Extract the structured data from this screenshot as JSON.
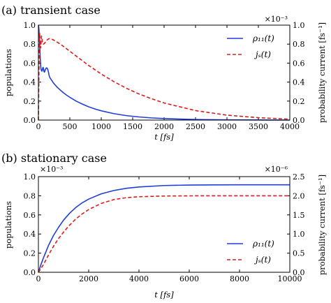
{
  "chart_data": [
    {
      "type": "line",
      "title": "(a) transient case",
      "xlabel": "t [fs]",
      "ylabel": "populations",
      "y2label": "probability current [fs⁻¹]",
      "xlim": [
        0,
        4000
      ],
      "ylim": [
        0,
        1.0
      ],
      "y2lim": [
        0,
        1.0
      ],
      "y2_scale_label": "×10⁻³",
      "xticks": [
        "0",
        "500",
        "1000",
        "1500",
        "2000",
        "2500",
        "3000",
        "3500",
        "4000"
      ],
      "yticks": [
        "0.0",
        "0.2",
        "0.4",
        "0.6",
        "0.8",
        "1.0"
      ],
      "y2ticks": [
        "0.0",
        "0.2",
        "0.4",
        "0.6",
        "0.8",
        "1.0"
      ],
      "legend_position": "top-right",
      "series": [
        {
          "name": "ρ₁₁(t)",
          "axis": "left",
          "color": "#1f3fd8",
          "style": "solid",
          "x": [
            0,
            5,
            10,
            15,
            20,
            25,
            30,
            35,
            40,
            45,
            50,
            55,
            60,
            65,
            70,
            75,
            80,
            85,
            90,
            95,
            100,
            110,
            120,
            130,
            140,
            150,
            160,
            170,
            180,
            190,
            200,
            220,
            240,
            260,
            280,
            300,
            350,
            400,
            450,
            500,
            600,
            700,
            800,
            900,
            1000,
            1200,
            1400,
            1600,
            1800,
            2000,
            2500,
            3000,
            3500,
            4000
          ],
          "y": [
            1.0,
            0.98,
            0.94,
            0.88,
            0.8,
            0.72,
            0.64,
            0.58,
            0.545,
            0.53,
            0.52,
            0.515,
            0.52,
            0.535,
            0.55,
            0.555,
            0.545,
            0.525,
            0.51,
            0.505,
            0.51,
            0.53,
            0.545,
            0.55,
            0.545,
            0.53,
            0.505,
            0.47,
            0.45,
            0.44,
            0.43,
            0.41,
            0.39,
            0.375,
            0.36,
            0.345,
            0.315,
            0.287,
            0.262,
            0.24,
            0.2,
            0.168,
            0.14,
            0.117,
            0.098,
            0.068,
            0.047,
            0.033,
            0.023,
            0.016,
            0.006,
            0.002,
            0.001,
            0.0
          ]
        },
        {
          "name": "jₛ(t)",
          "axis": "right",
          "color": "#e01a1a",
          "style": "dashed",
          "x": [
            0,
            5,
            10,
            15,
            20,
            25,
            30,
            35,
            40,
            45,
            50,
            55,
            60,
            65,
            70,
            80,
            90,
            100,
            110,
            120,
            140,
            160,
            180,
            200,
            220,
            250,
            300,
            350,
            400,
            450,
            500,
            600,
            700,
            800,
            900,
            1000,
            1200,
            1400,
            1600,
            1800,
            2000,
            2500,
            3000,
            3500,
            4000
          ],
          "y": [
            0.0,
            0.3,
            0.6,
            0.82,
            0.92,
            0.88,
            0.8,
            0.76,
            0.79,
            0.85,
            0.885,
            0.875,
            0.84,
            0.81,
            0.8,
            0.8,
            0.805,
            0.81,
            0.82,
            0.83,
            0.845,
            0.855,
            0.858,
            0.855,
            0.85,
            0.84,
            0.82,
            0.8,
            0.775,
            0.75,
            0.725,
            0.675,
            0.625,
            0.575,
            0.53,
            0.485,
            0.405,
            0.335,
            0.275,
            0.225,
            0.18,
            0.1,
            0.052,
            0.025,
            0.01
          ]
        }
      ]
    },
    {
      "type": "line",
      "title": "(b) stationary case",
      "xlabel": "t [fs]",
      "ylabel": "populations",
      "y2label": "probability current [fs⁻¹]",
      "xlim": [
        0,
        10000
      ],
      "ylim": [
        0,
        1.0
      ],
      "y2lim": [
        0,
        2.5
      ],
      "y_scale_label": "×10⁻³",
      "y2_scale_label": "×10⁻⁶",
      "xticks": [
        "0",
        "2000",
        "4000",
        "6000",
        "8000",
        "10000"
      ],
      "yticks": [
        "0.0",
        "0.2",
        "0.4",
        "0.6",
        "0.8",
        "1.0"
      ],
      "y2ticks": [
        "0.0",
        "0.5",
        "1.0",
        "1.5",
        "2.0",
        "2.5"
      ],
      "legend_position": "lower-right",
      "series": [
        {
          "name": "ρ₁₁(t)",
          "axis": "left",
          "color": "#1f3fd8",
          "style": "solid",
          "x": [
            0,
            100,
            200,
            400,
            600,
            800,
            1000,
            1250,
            1500,
            1750,
            2000,
            2500,
            3000,
            3500,
            4000,
            5000,
            6000,
            7000,
            8000,
            9000,
            10000
          ],
          "y": [
            0.0,
            0.08,
            0.15,
            0.28,
            0.385,
            0.47,
            0.545,
            0.62,
            0.68,
            0.728,
            0.765,
            0.82,
            0.855,
            0.878,
            0.892,
            0.907,
            0.912,
            0.914,
            0.915,
            0.915,
            0.915
          ]
        },
        {
          "name": "jₛ(t)",
          "axis": "right",
          "color": "#e01a1a",
          "style": "dashed",
          "x": [
            0,
            100,
            200,
            400,
            600,
            800,
            1000,
            1250,
            1500,
            1750,
            2000,
            2500,
            3000,
            3500,
            4000,
            5000,
            6000,
            7000,
            8000,
            9000,
            10000
          ],
          "y": [
            0.0,
            0.1,
            0.2,
            0.45,
            0.68,
            0.88,
            1.05,
            1.24,
            1.4,
            1.53,
            1.64,
            1.8,
            1.9,
            1.95,
            1.975,
            1.993,
            1.998,
            2.0,
            2.0,
            2.0,
            2.0
          ]
        }
      ]
    }
  ]
}
